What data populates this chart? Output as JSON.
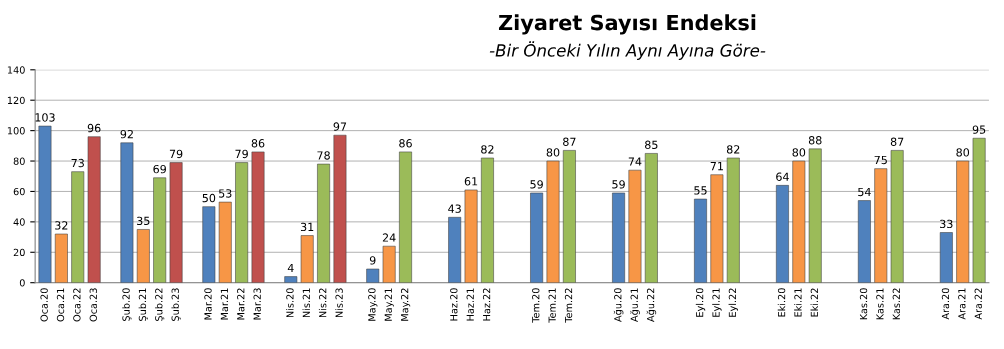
{
  "chart_data": {
    "type": "bar",
    "title": "Ziyaret Sayısı Endeksi",
    "subtitle": "-Bir Önceki Yılın Aynı Ayına Göre-",
    "categories": [
      "Oca.20",
      "Oca.21",
      "Oca.22",
      "Oca.23",
      null,
      "Şub.20",
      "Şub.21",
      "Şub.22",
      "Şub.23",
      null,
      "Mar.20",
      "Mar.21",
      "Mar.22",
      "Mar.23",
      null,
      "Nis.20",
      "Nis.21",
      "Nis.22",
      "Nis.23",
      null,
      "May.20",
      "May.21",
      "May.22",
      null,
      null,
      "Haz.20",
      "Haz.21",
      "Haz.22",
      null,
      null,
      "Tem.20",
      "Tem.21",
      "Tem.22",
      null,
      null,
      "Ağu.20",
      "Ağu.21",
      "Ağu.22",
      null,
      null,
      "Eyl.20",
      "Eyl.21",
      "Eyl.22",
      null,
      null,
      "Eki.20",
      "Eki.21",
      "Eki.22",
      null,
      null,
      "Kas.20",
      "Kas.21",
      "Kas.22",
      null,
      null,
      "Ara.20",
      "Ara.21",
      "Ara.22"
    ],
    "values": [
      103,
      32,
      73,
      96,
      null,
      92,
      35,
      69,
      79,
      null,
      50,
      53,
      79,
      86,
      null,
      4,
      31,
      78,
      97,
      null,
      9,
      24,
      86,
      null,
      null,
      43,
      61,
      82,
      null,
      null,
      59,
      80,
      87,
      null,
      null,
      59,
      74,
      85,
      null,
      null,
      55,
      71,
      82,
      null,
      null,
      64,
      80,
      88,
      null,
      null,
      54,
      75,
      87,
      null,
      null,
      33,
      80,
      95
    ],
    "colors": [
      "#4f81bd",
      "#f79646",
      "#9bbb59",
      "#c0504d",
      null,
      "#4f81bd",
      "#f79646",
      "#9bbb59",
      "#c0504d",
      null,
      "#4f81bd",
      "#f79646",
      "#9bbb59",
      "#c0504d",
      null,
      "#4f81bd",
      "#f79646",
      "#9bbb59",
      "#c0504d",
      null,
      "#4f81bd",
      "#f79646",
      "#9bbb59",
      null,
      null,
      "#4f81bd",
      "#f79646",
      "#9bbb59",
      null,
      null,
      "#4f81bd",
      "#f79646",
      "#9bbb59",
      null,
      null,
      "#4f81bd",
      "#f79646",
      "#9bbb59",
      null,
      null,
      "#4f81bd",
      "#f79646",
      "#9bbb59",
      null,
      null,
      "#4f81bd",
      "#f79646",
      "#9bbb59",
      null,
      null,
      "#4f81bd",
      "#f79646",
      "#9bbb59",
      null,
      null,
      "#4f81bd",
      "#f79646",
      "#9bbb59"
    ],
    "ylim": [
      0,
      140
    ],
    "yticks": [
      0,
      20,
      40,
      60,
      80,
      100,
      120,
      140
    ],
    "grid": "y",
    "data_labels": true
  }
}
